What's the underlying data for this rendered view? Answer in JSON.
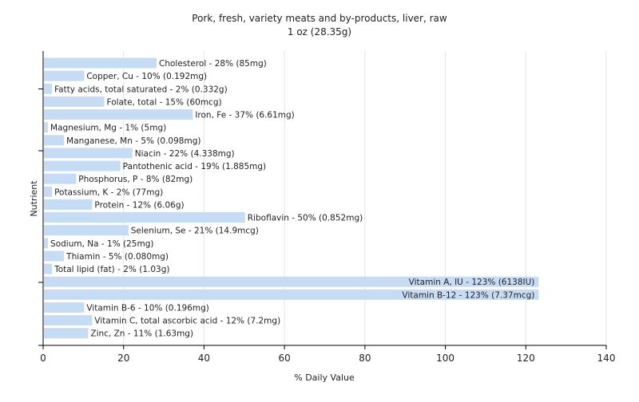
{
  "chart_data": {
    "type": "bar",
    "orientation": "horizontal",
    "title": "Pork, fresh, variety meats and by-products, liver, raw",
    "subtitle": "1 oz (28.35g)",
    "xlabel": "% Daily Value",
    "ylabel": "Nutrient",
    "xlim": [
      0,
      140
    ],
    "xticks": [
      0,
      20,
      40,
      60,
      80,
      100,
      120,
      140
    ],
    "grid": true,
    "colors": {
      "bar": "#c6dcf5",
      "grid": "#e4e4e4",
      "axis": "#000000"
    },
    "categories": [
      "Cholesterol",
      "Copper, Cu",
      "Fatty acids, total saturated",
      "Folate, total",
      "Iron, Fe",
      "Magnesium, Mg",
      "Manganese, Mn",
      "Niacin",
      "Pantothenic acid",
      "Phosphorus, P",
      "Potassium, K",
      "Protein",
      "Riboflavin",
      "Selenium, Se",
      "Sodium, Na",
      "Thiamin",
      "Total lipid (fat)",
      "Vitamin A, IU",
      "Vitamin B-12",
      "Vitamin B-6",
      "Vitamin C, total ascorbic acid",
      "Zinc, Zn"
    ],
    "values": [
      28,
      10,
      2,
      15,
      37,
      1,
      5,
      22,
      19,
      8,
      2,
      12,
      50,
      21,
      1,
      5,
      2,
      123,
      123,
      10,
      12,
      11
    ],
    "labels": [
      "Cholesterol - 28% (85mg)",
      "Copper, Cu - 10% (0.192mg)",
      "Fatty acids, total saturated - 2% (0.332g)",
      "Folate, total - 15% (60mcg)",
      "Iron, Fe - 37% (6.61mg)",
      "Magnesium, Mg - 1% (5mg)",
      "Manganese, Mn - 5% (0.098mg)",
      "Niacin - 22% (4.338mg)",
      "Pantothenic acid - 19% (1.885mg)",
      "Phosphorus, P - 8% (82mg)",
      "Potassium, K - 2% (77mg)",
      "Protein - 12% (6.06g)",
      "Riboflavin - 50% (0.852mg)",
      "Selenium, Se - 21% (14.9mcg)",
      "Sodium, Na - 1% (25mg)",
      "Thiamin - 5% (0.080mg)",
      "Total lipid (fat) - 2% (1.03g)",
      "Vitamin A, IU - 123% (6138IU)",
      "Vitamin B-12 - 123% (7.37mcg)",
      "Vitamin B-6 - 10% (0.196mg)",
      "Vitamin C, total ascorbic acid - 12% (7.2mg)",
      "Zinc, Zn - 11% (1.63mg)"
    ]
  }
}
